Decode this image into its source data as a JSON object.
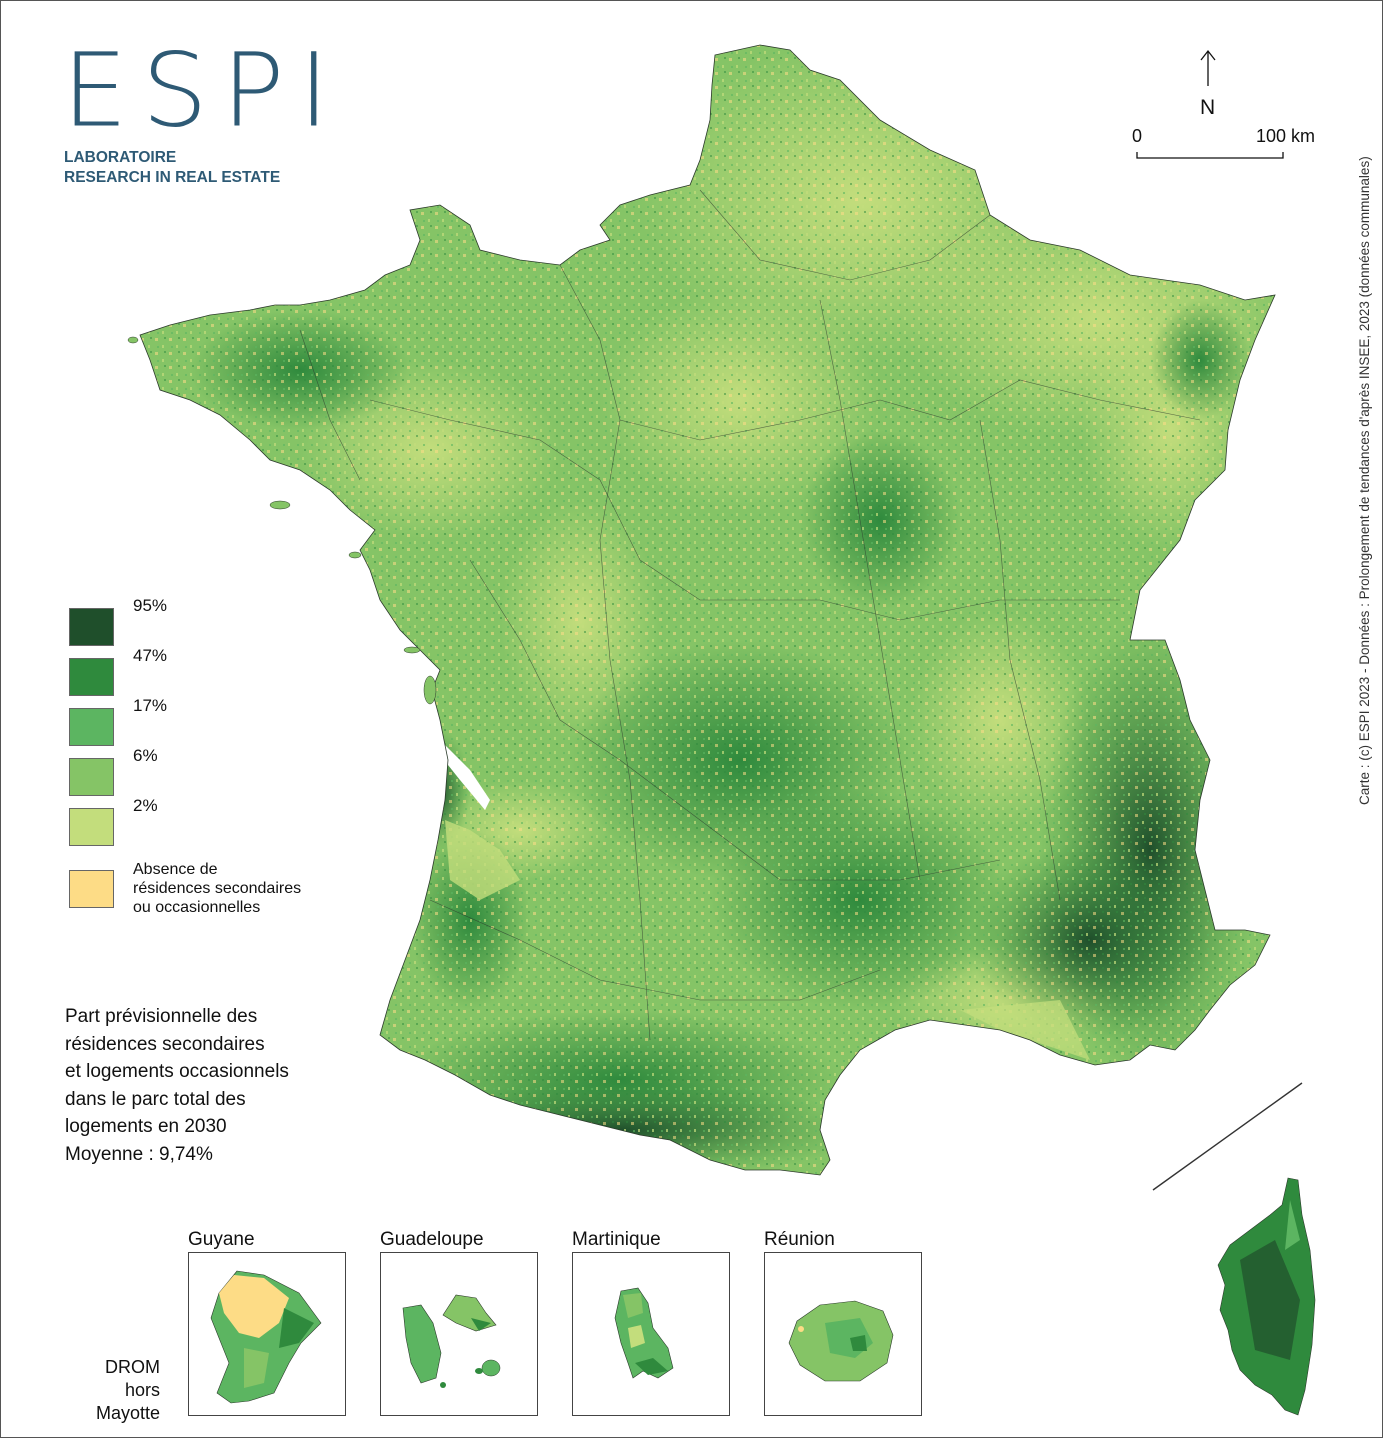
{
  "logo": {
    "wordmark": "ESPI",
    "line1": "LABORATOIRE",
    "line2": "RESEARCH IN REAL ESTATE",
    "color": "#2e5a75"
  },
  "north": {
    "label": "N"
  },
  "scale": {
    "start": "0",
    "end": "100 km"
  },
  "source": "Carte : (c) ESPI 2023 - Données : Prolongement de tendances d'après INSEE, 2023 (données communales)",
  "legend": {
    "classes": [
      {
        "label": "95%",
        "color": "#1f4f2b"
      },
      {
        "label": "47%",
        "color": "#2f8a3d"
      },
      {
        "label": "17%",
        "color": "#5cb561"
      },
      {
        "label": "6%",
        "color": "#85c466"
      },
      {
        "label": "2%",
        "color": "#c3dd7c"
      }
    ],
    "absence": {
      "lines": [
        "Absence de",
        "résidences secondaires",
        "ou occasionnelles"
      ],
      "color": "#fddc86"
    }
  },
  "title": {
    "lines": [
      "Part prévisionnelle des",
      "résidences secondaires",
      "et logements occasionnels",
      "dans le parc total des",
      "logements en 2030",
      "Moyenne : 9,74%"
    ]
  },
  "insets": [
    {
      "name": "Guyane"
    },
    {
      "name": "Guadeloupe"
    },
    {
      "name": "Martinique"
    },
    {
      "name": "Réunion"
    }
  ],
  "drom_label": [
    "DROM",
    "hors",
    "Mayotte"
  ]
}
